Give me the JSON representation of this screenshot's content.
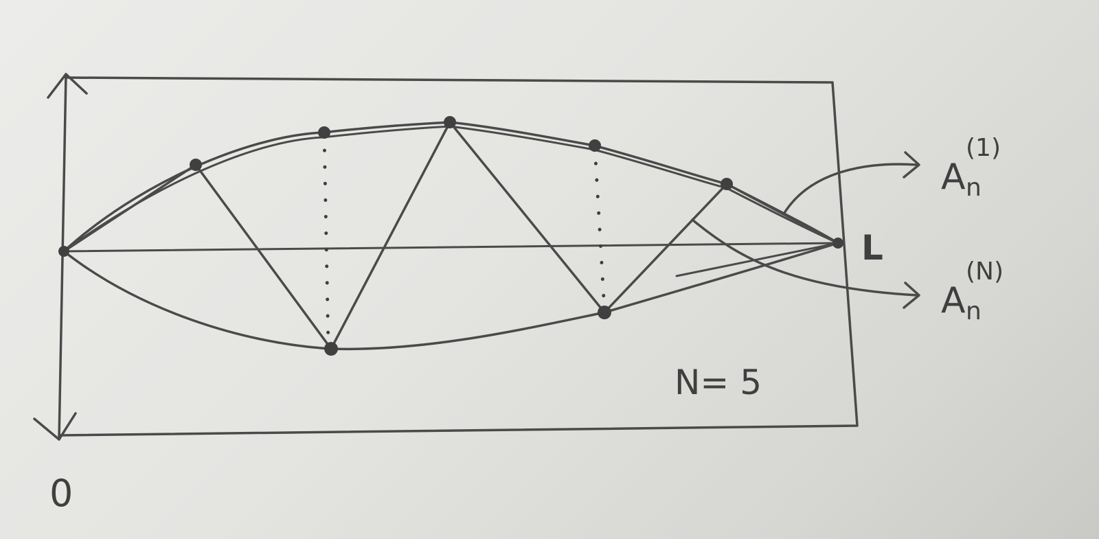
{
  "labels": {
    "origin": "0",
    "length": "L",
    "mode_count": "N= 5"
  },
  "curves": [
    {
      "symbol": "A",
      "subscript": "n",
      "superscript": "(1)"
    },
    {
      "symbol": "A",
      "subscript": "n",
      "superscript": "(N)"
    }
  ],
  "colors": {
    "ink": "#4a4a4a",
    "paper": "#e4e4e1"
  }
}
